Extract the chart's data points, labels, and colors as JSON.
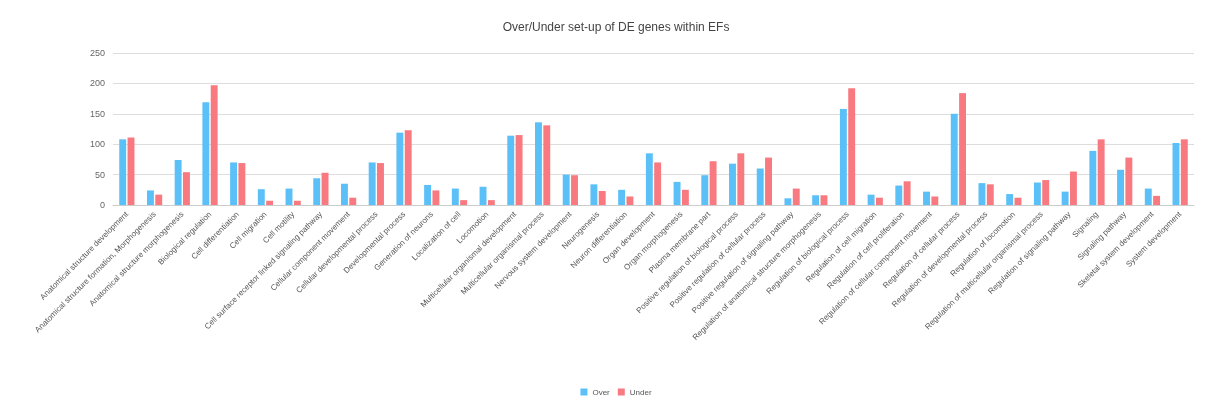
{
  "chart_data": {
    "type": "bar",
    "title": "Over/Under set-up of DE genes within EFs",
    "categories": [
      "Anatomical structure development",
      "Anatomical structure formation, Morphogenesis",
      "Anatomical structure morphogenesis",
      "Biological regulation",
      "Cell differentiation",
      "Cell migration",
      "Cell motility",
      "Cell surface receptor linked signaling pathway",
      "Cellular component movement",
      "Cellular developmental process",
      "Developmental process",
      "Generation of neurons",
      "Localization of cell",
      "Locomotion",
      "Multicellular organismal development",
      "Multicellular organismal process",
      "Nervous system development",
      "Neurogenesis",
      "Neuron differentiation",
      "Organ development",
      "Organ morphogenesis",
      "Plasma membrane part",
      "Positive regulation of biological process",
      "Positive regulation of cellular process",
      "Positive regulation of signaling pathway",
      "Regulation of anatomical structure morphogenesis",
      "Regulation of biological process",
      "Regulation of cell migration",
      "Regulation of cell proliferation",
      "Regulation of cellular component movement",
      "Regulation of cellular process",
      "Regulation of developmental process",
      "Regulation of locomotion",
      "Regulation of multicellular organismal process",
      "Regulation of signaling pathway",
      "Signaling",
      "Signaling pathway",
      "Skeletal system development",
      "System development"
    ],
    "series": [
      {
        "name": "Over",
        "color": "#5bc0f8",
        "values": [
          108,
          24,
          74,
          169,
          70,
          26,
          27,
          44,
          35,
          70,
          119,
          33,
          27,
          30,
          114,
          136,
          50,
          34,
          25,
          85,
          38,
          49,
          68,
          60,
          11,
          16,
          158,
          17,
          32,
          22,
          150,
          36,
          18,
          37,
          22,
          89,
          58,
          27,
          102
        ]
      },
      {
        "name": "Under",
        "color": "#f87a80",
        "values": [
          111,
          17,
          54,
          197,
          69,
          7,
          7,
          53,
          12,
          69,
          123,
          24,
          8,
          8,
          115,
          131,
          49,
          23,
          14,
          70,
          25,
          72,
          85,
          78,
          27,
          16,
          192,
          12,
          39,
          14,
          184,
          34,
          12,
          41,
          55,
          108,
          78,
          15,
          108
        ]
      }
    ],
    "ylim": [
      0,
      250
    ],
    "yticks": [
      0,
      50,
      100,
      150,
      200,
      250
    ],
    "grid": "y",
    "legend": "bottom"
  }
}
